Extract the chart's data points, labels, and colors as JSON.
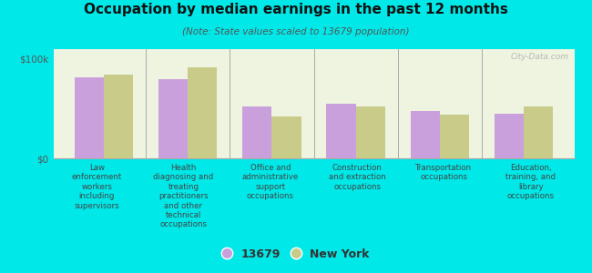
{
  "title": "Occupation by median earnings in the past 12 months",
  "subtitle": "(Note: State values scaled to 13679 population)",
  "background_color": "#00e8e8",
  "plot_background_color": "#eef4e0",
  "categories": [
    "Law\nenforcement\nworkers\nincluding\nsupervisors",
    "Health\ndiagnosing and\ntreating\npractitioners\nand other\ntechnical\noccupations",
    "Office and\nadministrative\nsupport\noccupations",
    "Construction\nand extraction\noccupations",
    "Transportation\noccupations",
    "Education,\ntraining, and\nlibrary\noccupations"
  ],
  "values_13679": [
    82000,
    80000,
    52000,
    55000,
    48000,
    45000
  ],
  "values_ny": [
    84000,
    92000,
    42000,
    52000,
    44000,
    52000
  ],
  "color_13679": "#c9a0dc",
  "color_ny": "#c8cc88",
  "ylim": [
    0,
    110000
  ],
  "yticks": [
    0,
    100000
  ],
  "ytick_labels": [
    "$0",
    "$100k"
  ],
  "legend_13679": "13679",
  "legend_ny": "New York",
  "watermark": "City-Data.com",
  "bar_width": 0.35
}
